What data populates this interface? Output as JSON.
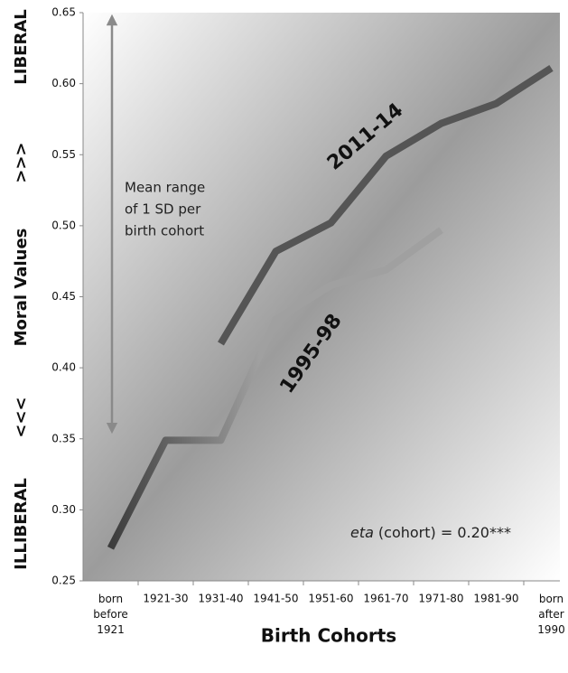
{
  "chart_data": {
    "type": "line",
    "ylabel": "Moral Values",
    "xlabel": "Birth Cohorts",
    "y_side_labels": {
      "top": "LIBERAL",
      "upper": ">>>",
      "lower": "<<<",
      "bottom": "ILLIBERAL"
    },
    "sd_note": [
      "Mean range",
      "of 1 SD per",
      "birth cohort"
    ],
    "eta_note": {
      "italic": "eta",
      "text": "(cohort) = 0.20***"
    },
    "categories": [
      "born before 1921",
      "1921-30",
      "1931-40",
      "1941-50",
      "1951-60",
      "1961-70",
      "1971-80",
      "1981-90",
      "born after 1990"
    ],
    "series": [
      {
        "name": "2011-14",
        "color": "#555555",
        "values": [
          null,
          null,
          0.417,
          0.482,
          0.502,
          0.549,
          0.572,
          0.586,
          0.611
        ]
      },
      {
        "name": "1995-98",
        "color": "#a0a0a0",
        "values": [
          0.273,
          0.349,
          0.349,
          0.434,
          0.458,
          0.469,
          0.497,
          null,
          null
        ]
      }
    ],
    "ylim": [
      0.25,
      0.65
    ],
    "yticks": [
      0.25,
      {
        "value": 0.3,
        "label": "0.30"
      },
      0.35,
      {
        "value": 0.4,
        "label": "0.40"
      },
      0.45,
      {
        "value": 0.5,
        "label": "0.50"
      },
      0.55,
      {
        "value": 0.6,
        "label": "0.60"
      },
      0.65
    ]
  }
}
